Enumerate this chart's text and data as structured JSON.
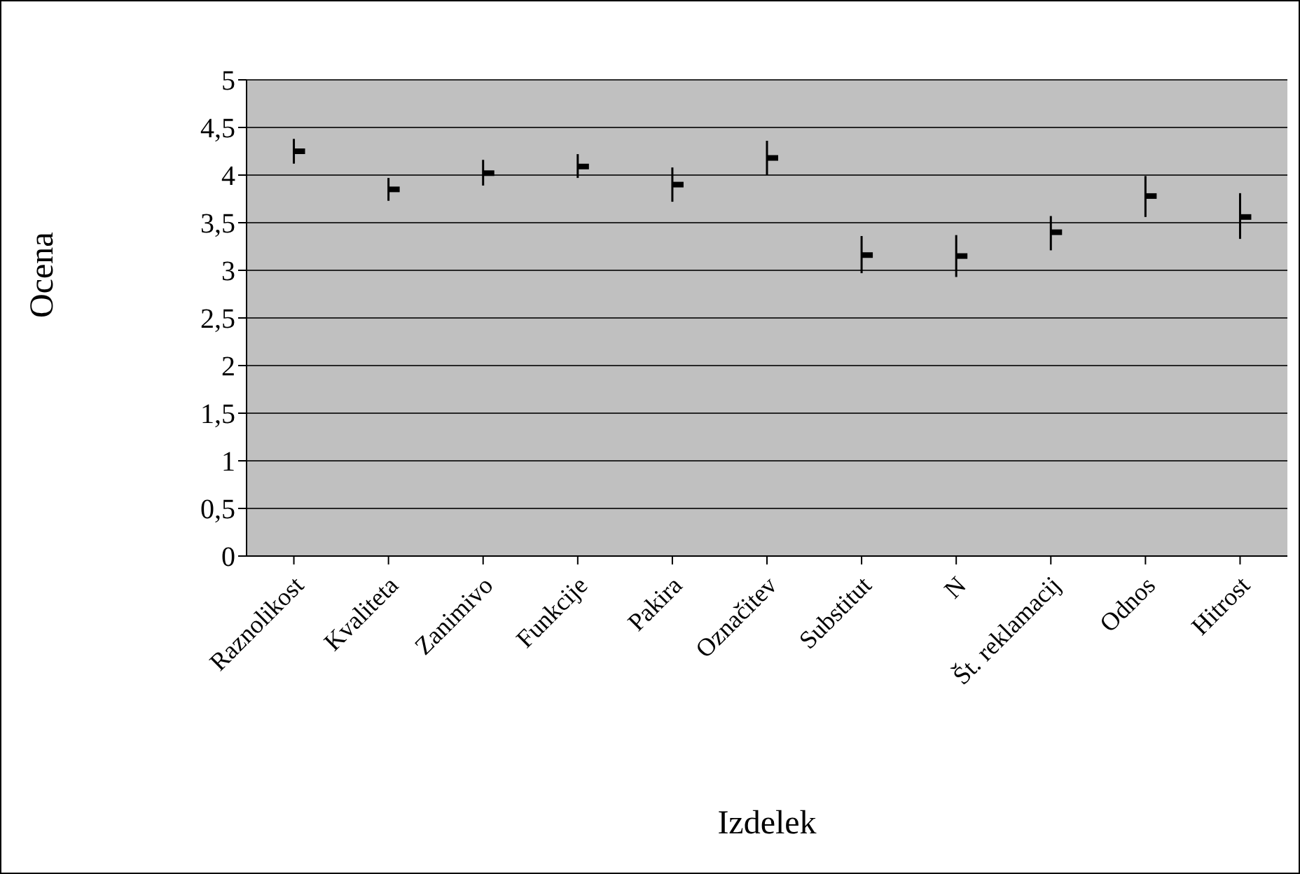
{
  "chart_data": {
    "type": "scatter",
    "xlabel": "Izdelek",
    "ylabel": "Ocena",
    "categories": [
      "Raznolikost",
      "Kvaliteta",
      "Zanimivo",
      "Funkcije",
      "Pakira",
      "Označitev",
      "Substitut",
      "N",
      "Št. reklamacij",
      "Odnos",
      "Hitrost"
    ],
    "series": [
      {
        "color": "#000000",
        "values": [
          4.25,
          3.85,
          4.02,
          4.09,
          3.9,
          4.18,
          3.16,
          3.15,
          3.4,
          3.78,
          3.56
        ],
        "errors": [
          [
            4.12,
            4.38
          ],
          [
            3.73,
            3.97
          ],
          [
            3.89,
            4.16
          ],
          [
            3.97,
            4.22
          ],
          [
            3.72,
            4.08
          ],
          [
            4.0,
            4.36
          ],
          [
            2.97,
            3.36
          ],
          [
            2.93,
            3.37
          ],
          [
            3.21,
            3.57
          ],
          [
            3.56,
            3.99
          ],
          [
            3.33,
            3.81
          ]
        ]
      }
    ],
    "ylim": [
      0,
      5
    ],
    "yticks": [
      0,
      {
        "value": 0.5,
        "label": "0,5"
      },
      1,
      {
        "value": 1.5,
        "label": "1,5"
      },
      2,
      {
        "value": 2.5,
        "label": "2,5"
      },
      3,
      {
        "value": 3.5,
        "label": "3,5"
      },
      4,
      {
        "value": 4.5,
        "label": "4,5"
      },
      5
    ],
    "grid": "y",
    "legend": false
  }
}
